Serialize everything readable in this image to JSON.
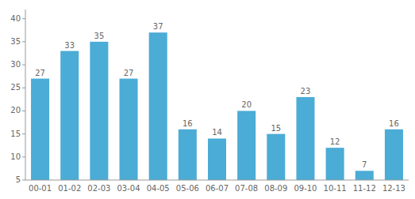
{
  "chart_data": {
    "type": "bar",
    "categories": [
      "00-01",
      "01-02",
      "02-03",
      "03-04",
      "04-05",
      "05-06",
      "06-07",
      "07-08",
      "08-09",
      "09-10",
      "10-11",
      "11-12",
      "12-13"
    ],
    "values": [
      27,
      33,
      35,
      27,
      37,
      16,
      14,
      20,
      15,
      23,
      12,
      7,
      16
    ],
    "color": "#4bacd6",
    "ylim": [
      5,
      42
    ],
    "yticks": [
      5,
      10,
      15,
      20,
      25,
      30,
      35,
      40
    ],
    "data_labels": true,
    "grid": false
  }
}
